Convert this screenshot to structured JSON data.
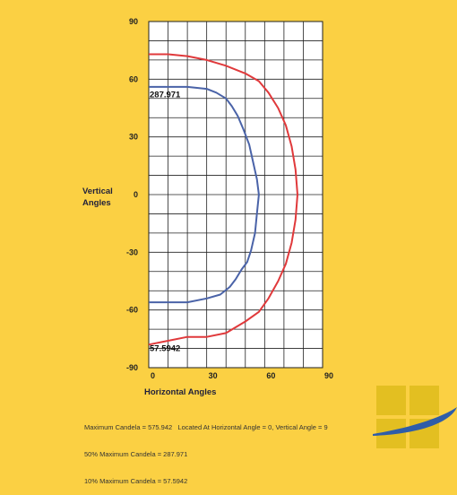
{
  "chart_data": {
    "type": "line",
    "xlabel": "Horizontal Angles",
    "ylabel_lines": [
      "Vertical",
      "Angles"
    ],
    "xlim": [
      0,
      90
    ],
    "ylim": [
      -90,
      90
    ],
    "x_ticks": [
      0,
      30,
      60,
      90
    ],
    "y_ticks": [
      90,
      60,
      30,
      0,
      -30,
      -60,
      -90
    ],
    "grid": true,
    "series": [
      {
        "color": "#e0393b",
        "points": [
          [
            0,
            73
          ],
          [
            10,
            73
          ],
          [
            20,
            72
          ],
          [
            30,
            70
          ],
          [
            40,
            67
          ],
          [
            50,
            63
          ],
          [
            57,
            59
          ],
          [
            62,
            53
          ],
          [
            67,
            45
          ],
          [
            71,
            36
          ],
          [
            74,
            25
          ],
          [
            76,
            13
          ],
          [
            77,
            0
          ],
          [
            76,
            -13
          ],
          [
            74,
            -25
          ],
          [
            71,
            -36
          ],
          [
            67,
            -45
          ],
          [
            62,
            -54
          ],
          [
            57,
            -61
          ],
          [
            50,
            -66
          ],
          [
            40,
            -72
          ],
          [
            30,
            -74
          ],
          [
            20,
            -74
          ],
          [
            10,
            -76
          ],
          [
            0,
            -78
          ]
        ]
      },
      {
        "color": "#4a63a8",
        "points": [
          [
            0,
            56
          ],
          [
            10,
            56
          ],
          [
            20,
            56
          ],
          [
            30,
            55
          ],
          [
            35,
            53
          ],
          [
            40,
            50
          ],
          [
            43,
            46
          ],
          [
            46,
            41
          ],
          [
            49,
            34
          ],
          [
            52,
            26
          ],
          [
            54,
            17
          ],
          [
            56,
            8
          ],
          [
            57,
            0
          ],
          [
            56,
            -10
          ],
          [
            55,
            -20
          ],
          [
            53,
            -29
          ],
          [
            51,
            -35
          ],
          [
            48,
            -39
          ],
          [
            45,
            -44
          ],
          [
            42,
            -48
          ],
          [
            37,
            -52
          ],
          [
            30,
            -54
          ],
          [
            20,
            -56
          ],
          [
            10,
            -56
          ],
          [
            0,
            -56
          ]
        ]
      }
    ],
    "annotations": [
      {
        "text": "287.971",
        "x": 0,
        "y": 52
      },
      {
        "text": "57.5942",
        "x": 0,
        "y": -80
      }
    ]
  },
  "footer": {
    "line1": "Maximum Candela = 575.942   Located At Horizontal Angle = 0, Vertical Angle = 9",
    "line2": "50% Maximum Candela = 287.971",
    "line3": "10% Maximum Candela = 57.5942"
  },
  "logo": {
    "icon": "brand-logo-icon",
    "square_color": "#e3bf21",
    "swoosh_color": "#2f5da8"
  }
}
